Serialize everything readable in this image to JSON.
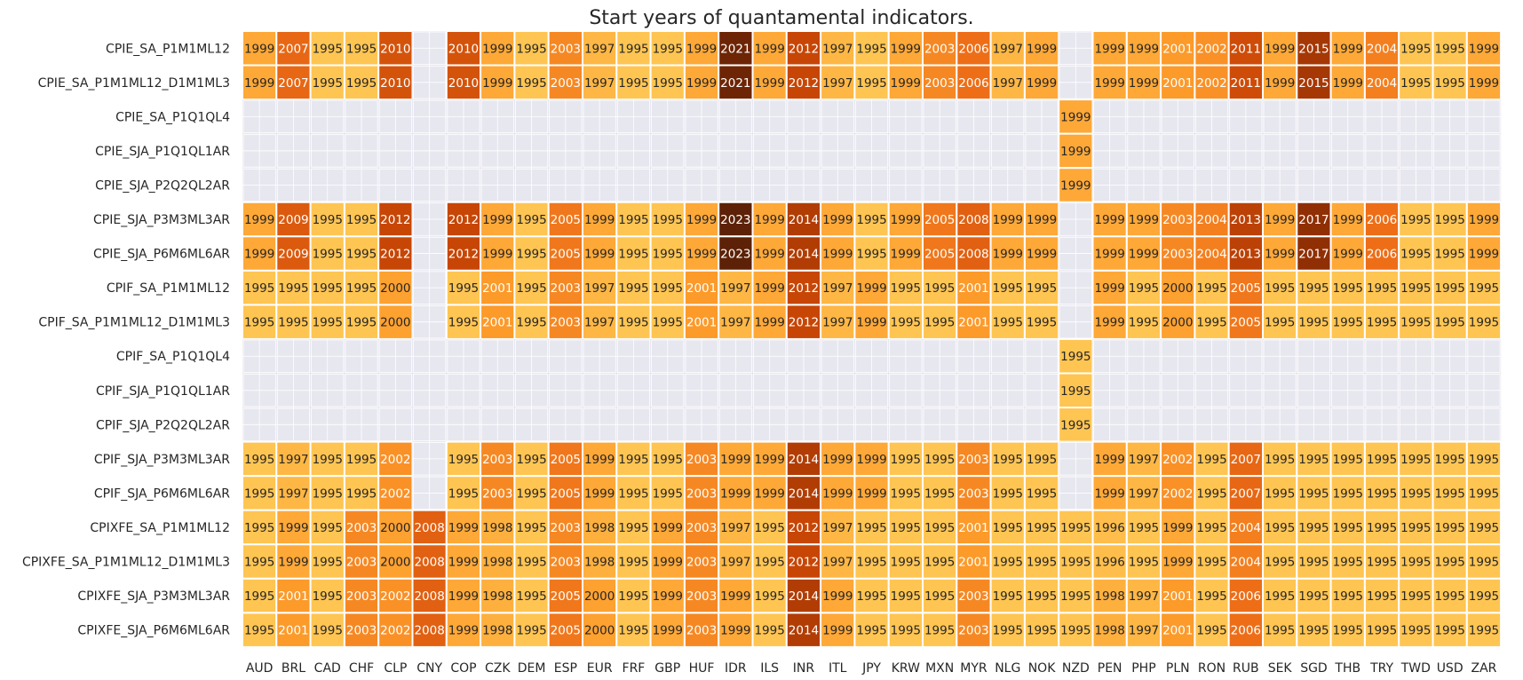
{
  "chart_data": {
    "type": "heatmap",
    "title": "Start years of quantamental indicators.",
    "xlabel": "",
    "ylabel": "",
    "color_scale": {
      "min": 1995,
      "max": 2023,
      "colors": [
        "#ffc552",
        "#fd9d2c",
        "#ec6c16",
        "#c94706",
        "#8c2d04",
        "#5c2106"
      ],
      "empty": "#e7e7f0",
      "background": "#eaeaf2"
    },
    "columns": [
      "AUD",
      "BRL",
      "CAD",
      "CHF",
      "CLP",
      "CNY",
      "COP",
      "CZK",
      "DEM",
      "ESP",
      "EUR",
      "FRF",
      "GBP",
      "HUF",
      "IDR",
      "ILS",
      "INR",
      "ITL",
      "JPY",
      "KRW",
      "MXN",
      "MYR",
      "NLG",
      "NOK",
      "NZD",
      "PEN",
      "PHP",
      "PLN",
      "RON",
      "RUB",
      "SEK",
      "SGD",
      "THB",
      "TRY",
      "TWD",
      "USD",
      "ZAR"
    ],
    "rows": [
      {
        "label": "CPIE_SA_P1M1ML12",
        "values": [
          1999,
          2007,
          1995,
          1995,
          2010,
          null,
          2010,
          1999,
          1995,
          2003,
          1997,
          1995,
          1995,
          1999,
          2021,
          1999,
          2012,
          1997,
          1995,
          1999,
          2003,
          2006,
          1997,
          1999,
          null,
          1999,
          1999,
          2001,
          2002,
          2011,
          1999,
          2015,
          1999,
          2004,
          1995,
          1995,
          1999
        ]
      },
      {
        "label": "CPIE_SA_P1M1ML12_D1M1ML3",
        "values": [
          1999,
          2007,
          1995,
          1995,
          2010,
          null,
          2010,
          1999,
          1995,
          2003,
          1997,
          1995,
          1995,
          1999,
          2021,
          1999,
          2012,
          1997,
          1995,
          1999,
          2003,
          2006,
          1997,
          1999,
          null,
          1999,
          1999,
          2001,
          2002,
          2011,
          1999,
          2015,
          1999,
          2004,
          1995,
          1995,
          1999
        ]
      },
      {
        "label": "CPIE_SA_P1Q1QL4",
        "values": [
          null,
          null,
          null,
          null,
          null,
          null,
          null,
          null,
          null,
          null,
          null,
          null,
          null,
          null,
          null,
          null,
          null,
          null,
          null,
          null,
          null,
          null,
          null,
          null,
          1999,
          null,
          null,
          null,
          null,
          null,
          null,
          null,
          null,
          null,
          null,
          null,
          null
        ]
      },
      {
        "label": "CPIE_SJA_P1Q1QL1AR",
        "values": [
          null,
          null,
          null,
          null,
          null,
          null,
          null,
          null,
          null,
          null,
          null,
          null,
          null,
          null,
          null,
          null,
          null,
          null,
          null,
          null,
          null,
          null,
          null,
          null,
          1999,
          null,
          null,
          null,
          null,
          null,
          null,
          null,
          null,
          null,
          null,
          null,
          null
        ]
      },
      {
        "label": "CPIE_SJA_P2Q2QL2AR",
        "values": [
          null,
          null,
          null,
          null,
          null,
          null,
          null,
          null,
          null,
          null,
          null,
          null,
          null,
          null,
          null,
          null,
          null,
          null,
          null,
          null,
          null,
          null,
          null,
          null,
          1999,
          null,
          null,
          null,
          null,
          null,
          null,
          null,
          null,
          null,
          null,
          null,
          null
        ]
      },
      {
        "label": "CPIE_SJA_P3M3ML3AR",
        "values": [
          1999,
          2009,
          1995,
          1995,
          2012,
          null,
          2012,
          1999,
          1995,
          2005,
          1999,
          1995,
          1995,
          1999,
          2023,
          1999,
          2014,
          1999,
          1995,
          1999,
          2005,
          2008,
          1999,
          1999,
          null,
          1999,
          1999,
          2003,
          2004,
          2013,
          1999,
          2017,
          1999,
          2006,
          1995,
          1995,
          1999
        ]
      },
      {
        "label": "CPIE_SJA_P6M6ML6AR",
        "values": [
          1999,
          2009,
          1995,
          1995,
          2012,
          null,
          2012,
          1999,
          1995,
          2005,
          1999,
          1995,
          1995,
          1999,
          2023,
          1999,
          2014,
          1999,
          1995,
          1999,
          2005,
          2008,
          1999,
          1999,
          null,
          1999,
          1999,
          2003,
          2004,
          2013,
          1999,
          2017,
          1999,
          2006,
          1995,
          1995,
          1999
        ]
      },
      {
        "label": "CPIF_SA_P1M1ML12",
        "values": [
          1995,
          1995,
          1995,
          1995,
          2000,
          null,
          1995,
          2001,
          1995,
          2003,
          1997,
          1995,
          1995,
          2001,
          1997,
          1999,
          2012,
          1997,
          1999,
          1995,
          1995,
          2001,
          1995,
          1995,
          null,
          1999,
          1995,
          2000,
          1995,
          2005,
          1995,
          1995,
          1995,
          1995,
          1995,
          1995,
          1995
        ]
      },
      {
        "label": "CPIF_SA_P1M1ML12_D1M1ML3",
        "values": [
          1995,
          1995,
          1995,
          1995,
          2000,
          null,
          1995,
          2001,
          1995,
          2003,
          1997,
          1995,
          1995,
          2001,
          1997,
          1999,
          2012,
          1997,
          1999,
          1995,
          1995,
          2001,
          1995,
          1995,
          null,
          1999,
          1995,
          2000,
          1995,
          2005,
          1995,
          1995,
          1995,
          1995,
          1995,
          1995,
          1995
        ]
      },
      {
        "label": "CPIF_SA_P1Q1QL4",
        "values": [
          null,
          null,
          null,
          null,
          null,
          null,
          null,
          null,
          null,
          null,
          null,
          null,
          null,
          null,
          null,
          null,
          null,
          null,
          null,
          null,
          null,
          null,
          null,
          null,
          1995,
          null,
          null,
          null,
          null,
          null,
          null,
          null,
          null,
          null,
          null,
          null,
          null
        ]
      },
      {
        "label": "CPIF_SJA_P1Q1QL1AR",
        "values": [
          null,
          null,
          null,
          null,
          null,
          null,
          null,
          null,
          null,
          null,
          null,
          null,
          null,
          null,
          null,
          null,
          null,
          null,
          null,
          null,
          null,
          null,
          null,
          null,
          1995,
          null,
          null,
          null,
          null,
          null,
          null,
          null,
          null,
          null,
          null,
          null,
          null
        ]
      },
      {
        "label": "CPIF_SJA_P2Q2QL2AR",
        "values": [
          null,
          null,
          null,
          null,
          null,
          null,
          null,
          null,
          null,
          null,
          null,
          null,
          null,
          null,
          null,
          null,
          null,
          null,
          null,
          null,
          null,
          null,
          null,
          null,
          1995,
          null,
          null,
          null,
          null,
          null,
          null,
          null,
          null,
          null,
          null,
          null,
          null
        ]
      },
      {
        "label": "CPIF_SJA_P3M3ML3AR",
        "values": [
          1995,
          1997,
          1995,
          1995,
          2002,
          null,
          1995,
          2003,
          1995,
          2005,
          1999,
          1995,
          1995,
          2003,
          1999,
          1999,
          2014,
          1999,
          1999,
          1995,
          1995,
          2003,
          1995,
          1995,
          null,
          1999,
          1997,
          2002,
          1995,
          2007,
          1995,
          1995,
          1995,
          1995,
          1995,
          1995,
          1995
        ]
      },
      {
        "label": "CPIF_SJA_P6M6ML6AR",
        "values": [
          1995,
          1997,
          1995,
          1995,
          2002,
          null,
          1995,
          2003,
          1995,
          2005,
          1999,
          1995,
          1995,
          2003,
          1999,
          1999,
          2014,
          1999,
          1999,
          1995,
          1995,
          2003,
          1995,
          1995,
          null,
          1999,
          1997,
          2002,
          1995,
          2007,
          1995,
          1995,
          1995,
          1995,
          1995,
          1995,
          1995
        ]
      },
      {
        "label": "CPIXFE_SA_P1M1ML12",
        "values": [
          1995,
          1999,
          1995,
          2003,
          2000,
          2008,
          1999,
          1998,
          1995,
          2003,
          1998,
          1995,
          1999,
          2003,
          1997,
          1995,
          2012,
          1997,
          1995,
          1995,
          1995,
          2001,
          1995,
          1995,
          1995,
          1996,
          1995,
          1999,
          1995,
          2004,
          1995,
          1995,
          1995,
          1995,
          1995,
          1995,
          1995
        ]
      },
      {
        "label": "CPIXFE_SA_P1M1ML12_D1M1ML3",
        "values": [
          1995,
          1999,
          1995,
          2003,
          2000,
          2008,
          1999,
          1998,
          1995,
          2003,
          1998,
          1995,
          1999,
          2003,
          1997,
          1995,
          2012,
          1997,
          1995,
          1995,
          1995,
          2001,
          1995,
          1995,
          1995,
          1996,
          1995,
          1999,
          1995,
          2004,
          1995,
          1995,
          1995,
          1995,
          1995,
          1995,
          1995
        ]
      },
      {
        "label": "CPIXFE_SJA_P3M3ML3AR",
        "values": [
          1995,
          2001,
          1995,
          2003,
          2002,
          2008,
          1999,
          1998,
          1995,
          2005,
          2000,
          1995,
          1999,
          2003,
          1999,
          1995,
          2014,
          1999,
          1995,
          1995,
          1995,
          2003,
          1995,
          1995,
          1995,
          1998,
          1997,
          2001,
          1995,
          2006,
          1995,
          1995,
          1995,
          1995,
          1995,
          1995,
          1995
        ]
      },
      {
        "label": "CPIXFE_SJA_P6M6ML6AR",
        "values": [
          1995,
          2001,
          1995,
          2003,
          2002,
          2008,
          1999,
          1998,
          1995,
          2005,
          2000,
          1995,
          1999,
          2003,
          1999,
          1995,
          2014,
          1999,
          1995,
          1995,
          1995,
          2003,
          1995,
          1995,
          1995,
          1998,
          1997,
          2001,
          1995,
          2006,
          1995,
          1995,
          1995,
          1995,
          1995,
          1995,
          1995
        ]
      }
    ]
  }
}
